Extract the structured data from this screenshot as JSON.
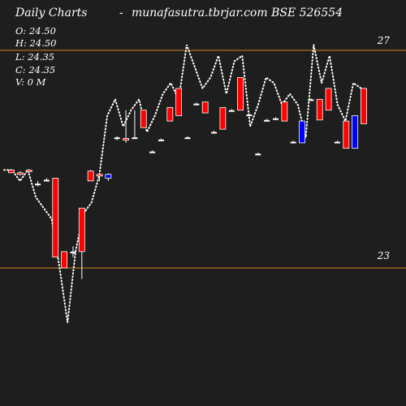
{
  "header": {
    "title": "Daily Charts",
    "separator": "-",
    "source": "munafasutra.tbrjar.com BSE 526554"
  },
  "ohlc_readout": {
    "open": "O: 24.50",
    "high": "H: 24.50",
    "low": "L: 24.35",
    "close": "C: 24.35",
    "volume": "V: 0  M"
  },
  "colors": {
    "background": "#1e1e1e",
    "bull_candle": "#ff0000",
    "bear_candle": "#0000ff",
    "level_line": "#d4821c",
    "trend_line": "#ffffff"
  },
  "chart_data": {
    "type": "candlestick",
    "levels": [
      {
        "label": "27",
        "value": 27
      },
      {
        "label": "23",
        "value": 23
      }
    ],
    "ylim": [
      21.5,
      27.9
    ],
    "dotted_line": [
      24.8,
      24.8,
      24.6,
      24.8,
      24.3,
      24.1,
      23.9,
      23.0,
      22.0,
      23.3,
      24.0,
      24.2,
      24.7,
      25.8,
      26.1,
      25.6,
      25.9,
      26.1,
      25.5,
      25.8,
      26.2,
      26.4,
      26.1,
      27.1,
      26.7,
      26.3,
      26.5,
      26.9,
      26.2,
      26.8,
      26.9,
      25.6,
      26.0,
      26.5,
      26.4,
      26.0,
      26.2,
      26.0,
      25.4,
      27.1,
      26.4,
      26.9,
      26.0,
      25.7,
      26.4,
      26.3
    ],
    "candles": [
      {
        "o": 24.75,
        "h": 24.8,
        "l": 24.75,
        "c": 24.8,
        "dir": "up"
      },
      {
        "o": 24.72,
        "h": 24.78,
        "l": 24.7,
        "c": 24.75,
        "dir": "up"
      },
      {
        "o": 24.78,
        "h": 24.82,
        "l": 24.75,
        "c": 24.8,
        "dir": "up"
      },
      {
        "o": 24.55,
        "h": 24.6,
        "l": 24.5,
        "c": 24.55,
        "dir": "flat"
      },
      {
        "o": 24.62,
        "h": 24.65,
        "l": 24.6,
        "c": 24.62,
        "dir": "flat"
      },
      {
        "o": 23.2,
        "h": 24.65,
        "l": 23.2,
        "c": 24.65,
        "dir": "up"
      },
      {
        "o": 23.0,
        "h": 23.3,
        "l": 23.0,
        "c": 23.3,
        "dir": "up"
      },
      {
        "o": 23.3,
        "h": 23.4,
        "l": 23.2,
        "c": 23.3,
        "dir": "flat"
      },
      {
        "o": 23.3,
        "h": 24.1,
        "l": 22.8,
        "c": 24.1,
        "dir": "up"
      },
      {
        "o": 24.6,
        "h": 24.8,
        "l": 24.6,
        "c": 24.78,
        "dir": "up"
      },
      {
        "o": 24.7,
        "h": 24.75,
        "l": 24.6,
        "c": 24.72,
        "dir": "up"
      },
      {
        "o": 24.72,
        "h": 24.74,
        "l": 24.6,
        "c": 24.65,
        "dir": "down"
      },
      {
        "o": 25.4,
        "h": 25.42,
        "l": 25.35,
        "c": 25.38,
        "dir": "flat"
      },
      {
        "o": 25.35,
        "h": 25.9,
        "l": 25.3,
        "c": 25.38,
        "dir": "up"
      },
      {
        "o": 25.4,
        "h": 25.9,
        "l": 25.38,
        "c": 25.38,
        "dir": "flat"
      },
      {
        "o": 25.58,
        "h": 25.9,
        "l": 25.58,
        "c": 25.9,
        "dir": "up"
      },
      {
        "o": 25.14,
        "h": 25.16,
        "l": 25.12,
        "c": 25.14,
        "dir": "flat"
      },
      {
        "o": 25.36,
        "h": 25.38,
        "l": 25.34,
        "c": 25.36,
        "dir": "flat"
      },
      {
        "o": 25.7,
        "h": 25.95,
        "l": 25.7,
        "c": 25.95,
        "dir": "up"
      },
      {
        "o": 25.8,
        "h": 26.3,
        "l": 25.8,
        "c": 26.3,
        "dir": "up"
      },
      {
        "o": 25.4,
        "h": 25.42,
        "l": 25.38,
        "c": 25.4,
        "dir": "flat"
      },
      {
        "o": 26.02,
        "h": 26.04,
        "l": 26.0,
        "c": 26.02,
        "dir": "flat"
      },
      {
        "o": 25.85,
        "h": 26.05,
        "l": 25.85,
        "c": 26.05,
        "dir": "up"
      },
      {
        "o": 25.5,
        "h": 25.52,
        "l": 25.48,
        "c": 25.5,
        "dir": "flat"
      },
      {
        "o": 25.55,
        "h": 25.95,
        "l": 25.55,
        "c": 25.95,
        "dir": "up"
      },
      {
        "o": 25.9,
        "h": 25.92,
        "l": 25.88,
        "c": 25.9,
        "dir": "flat"
      },
      {
        "o": 25.9,
        "h": 26.5,
        "l": 25.9,
        "c": 26.5,
        "dir": "up"
      },
      {
        "o": 25.82,
        "h": 25.84,
        "l": 25.8,
        "c": 25.82,
        "dir": "flat"
      },
      {
        "o": 25.1,
        "h": 25.12,
        "l": 25.08,
        "c": 25.1,
        "dir": "flat"
      },
      {
        "o": 25.72,
        "h": 25.74,
        "l": 25.7,
        "c": 25.72,
        "dir": "flat"
      },
      {
        "o": 25.75,
        "h": 25.77,
        "l": 25.73,
        "c": 25.75,
        "dir": "flat"
      },
      {
        "o": 25.7,
        "h": 26.05,
        "l": 25.7,
        "c": 26.05,
        "dir": "up"
      },
      {
        "o": 25.32,
        "h": 25.34,
        "l": 25.3,
        "c": 25.32,
        "dir": "flat"
      },
      {
        "o": 25.7,
        "h": 25.7,
        "l": 25.3,
        "c": 25.3,
        "dir": "down"
      },
      {
        "o": 26.1,
        "h": 26.12,
        "l": 26.08,
        "c": 26.1,
        "dir": "flat"
      },
      {
        "o": 25.72,
        "h": 26.1,
        "l": 25.72,
        "c": 26.1,
        "dir": "up"
      },
      {
        "o": 25.9,
        "h": 26.3,
        "l": 25.9,
        "c": 26.3,
        "dir": "up"
      },
      {
        "o": 25.32,
        "h": 25.34,
        "l": 25.3,
        "c": 25.32,
        "dir": "flat"
      },
      {
        "o": 25.2,
        "h": 25.7,
        "l": 25.2,
        "c": 25.7,
        "dir": "up"
      },
      {
        "o": 25.8,
        "h": 25.8,
        "l": 25.2,
        "c": 25.2,
        "dir": "down"
      },
      {
        "o": 25.65,
        "h": 26.3,
        "l": 25.65,
        "c": 26.3,
        "dir": "up"
      }
    ]
  }
}
